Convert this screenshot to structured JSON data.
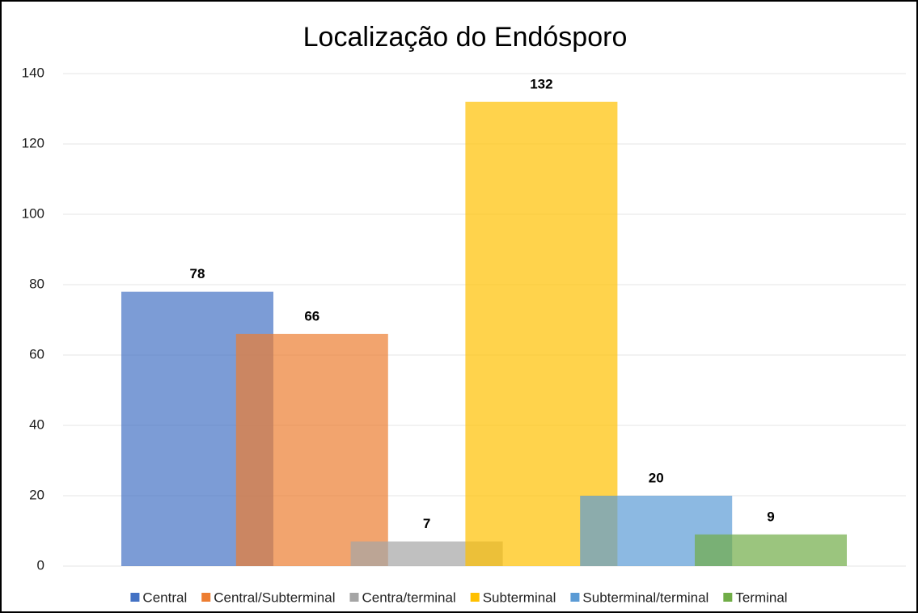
{
  "chart_data": {
    "type": "bar",
    "title": "Localização do Endósporo",
    "series": [
      {
        "name": "Central",
        "color": "#4472c4",
        "values": [
          78
        ]
      },
      {
        "name": "Central/Subterminal",
        "color": "#ed7d31",
        "values": [
          66
        ]
      },
      {
        "name": "Centra/terminal",
        "color": "#a5a5a5",
        "values": [
          7
        ]
      },
      {
        "name": "Subterminal",
        "color": "#ffc000",
        "values": [
          132
        ]
      },
      {
        "name": "Subterminal/terminal",
        "color": "#5b9bd5",
        "values": [
          20
        ]
      },
      {
        "name": "Terminal",
        "color": "#70ad47",
        "values": [
          9
        ]
      }
    ],
    "ylim": [
      0,
      140
    ],
    "yticks": [
      0,
      20,
      40,
      60,
      80,
      100,
      120,
      140
    ],
    "grid": true,
    "legend": "bottom"
  }
}
